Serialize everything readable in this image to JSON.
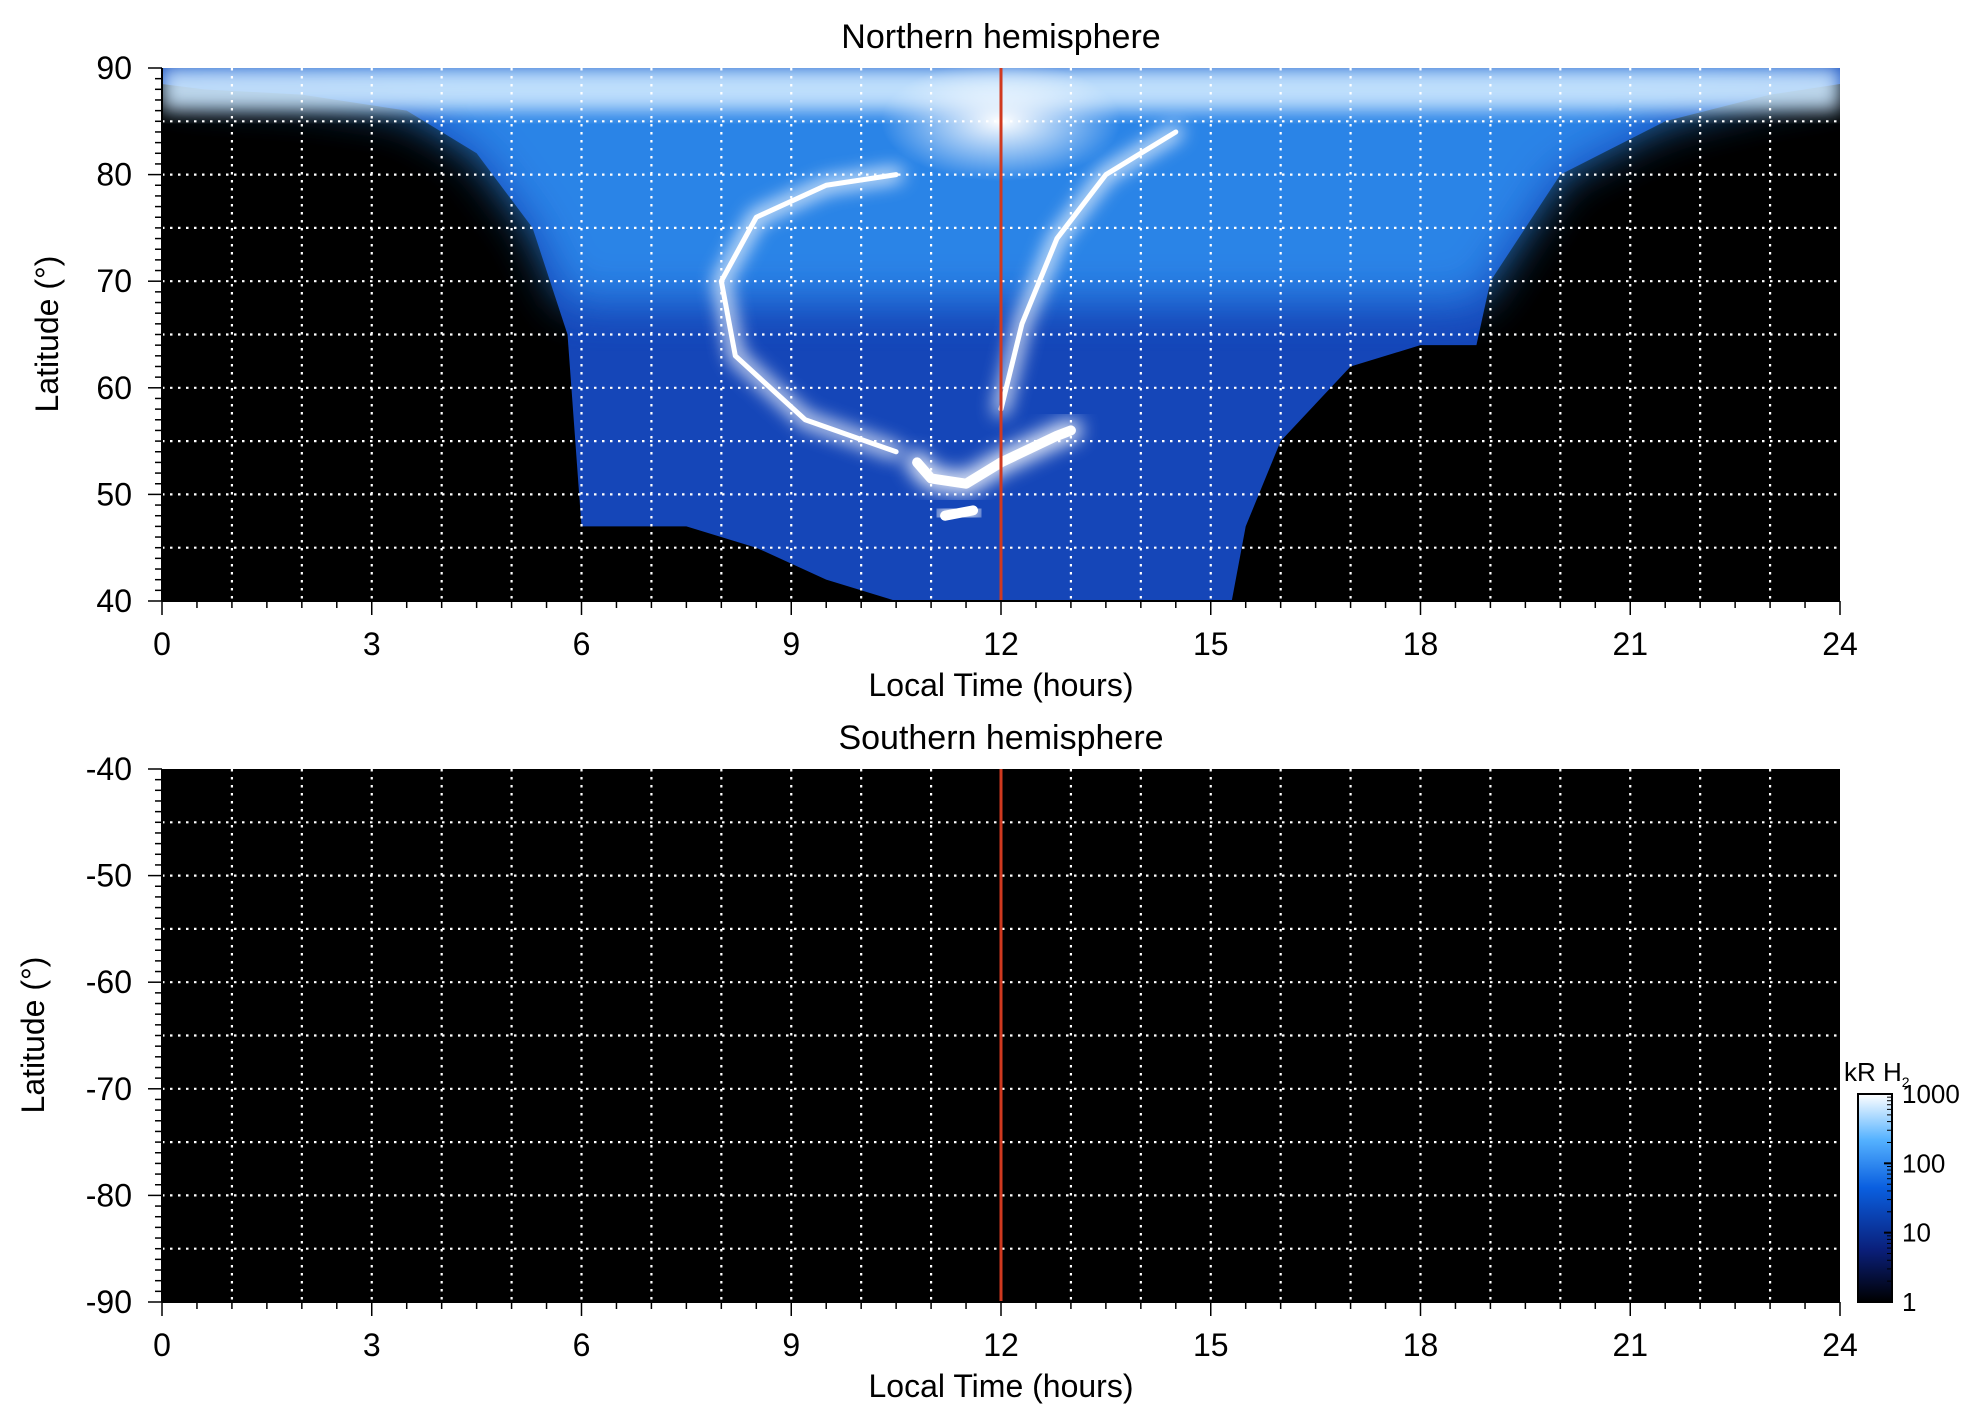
{
  "chart_data": [
    {
      "type": "heatmap",
      "title": "Northern hemisphere",
      "xlabel": "Local Time (hours)",
      "ylabel": "Latitude (°)",
      "xlim": [
        0,
        24
      ],
      "ylim": [
        40,
        90
      ],
      "x_ticks": [
        "0",
        "3",
        "6",
        "9",
        "12",
        "15",
        "18",
        "21",
        "24"
      ],
      "y_ticks": [
        "40",
        "50",
        "60",
        "70",
        "80",
        "90"
      ],
      "x_tick_values": [
        0,
        3,
        6,
        9,
        12,
        15,
        18,
        21,
        24
      ],
      "y_tick_values": [
        40,
        50,
        60,
        70,
        80,
        90
      ],
      "x_grid_step": 1,
      "y_grid_step": 5,
      "grid": true,
      "reference_line": {
        "x": 12,
        "color": "#d0391f"
      },
      "observed_region_boundary": {
        "x": [
          0,
          0.6,
          2,
          3.5,
          4.5,
          5.3,
          5.8,
          6.0,
          6.2,
          7.5,
          8.5,
          9.5,
          10.5,
          12,
          13.5,
          14.8,
          15.3,
          15.5,
          16,
          17,
          18,
          18.8,
          19,
          20,
          21.5,
          23,
          24
        ],
        "y_bottom": [
          88.5,
          88,
          87.5,
          86,
          82,
          75,
          65,
          47,
          47,
          47,
          45,
          42,
          40,
          40,
          40,
          40,
          40,
          47,
          55,
          62,
          64,
          64,
          70,
          80,
          85,
          87.5,
          88.5
        ]
      },
      "features": [
        {
          "name": "main-oval-dawn-arc",
          "x": [
            10.5,
            9.2,
            8.2,
            8.0,
            8.5,
            9.5,
            10.5
          ],
          "y": [
            54,
            57,
            63,
            70,
            76,
            79,
            80
          ]
        },
        {
          "name": "dayside-spot",
          "x": [
            10.8,
            11.0,
            11.5,
            12.0,
            12.8,
            13.0
          ],
          "y": [
            53,
            51.5,
            51,
            53,
            55.5,
            56
          ]
        },
        {
          "name": "dusk-arc",
          "x": [
            12.0,
            12.3,
            12.8,
            13.5,
            14.5
          ],
          "y": [
            58,
            66,
            74,
            80,
            84
          ]
        },
        {
          "name": "lower-spot",
          "x": [
            11.2,
            11.6
          ],
          "y": [
            48,
            48.5
          ]
        }
      ]
    },
    {
      "type": "heatmap",
      "title": "Southern hemisphere",
      "xlabel": "Local Time (hours)",
      "ylabel": "Latitude (°)",
      "xlim": [
        0,
        24
      ],
      "ylim": [
        -90,
        -40
      ],
      "x_ticks": [
        "0",
        "3",
        "6",
        "9",
        "12",
        "15",
        "18",
        "21",
        "24"
      ],
      "y_ticks": [
        "-90",
        "-80",
        "-70",
        "-60",
        "-50",
        "-40"
      ],
      "x_tick_values": [
        0,
        3,
        6,
        9,
        12,
        15,
        18,
        21,
        24
      ],
      "y_tick_values": [
        -90,
        -80,
        -70,
        -60,
        -50,
        -40
      ],
      "x_grid_step": 1,
      "y_grid_step": 5,
      "grid": true,
      "reference_line": {
        "x": 12,
        "color": "#d0391f"
      },
      "empty": true
    }
  ],
  "colorbar": {
    "unit_main": "kR H",
    "unit_sub": "2",
    "scale": "log",
    "range": [
      1,
      1000
    ],
    "tick_labels": [
      "1",
      "10",
      "100",
      "1000"
    ],
    "tick_values": [
      1,
      10,
      100,
      1000
    ],
    "colors": [
      "#000000",
      "#0a1f7a",
      "#0a5fe0",
      "#55b2ff",
      "#ffffff"
    ]
  }
}
